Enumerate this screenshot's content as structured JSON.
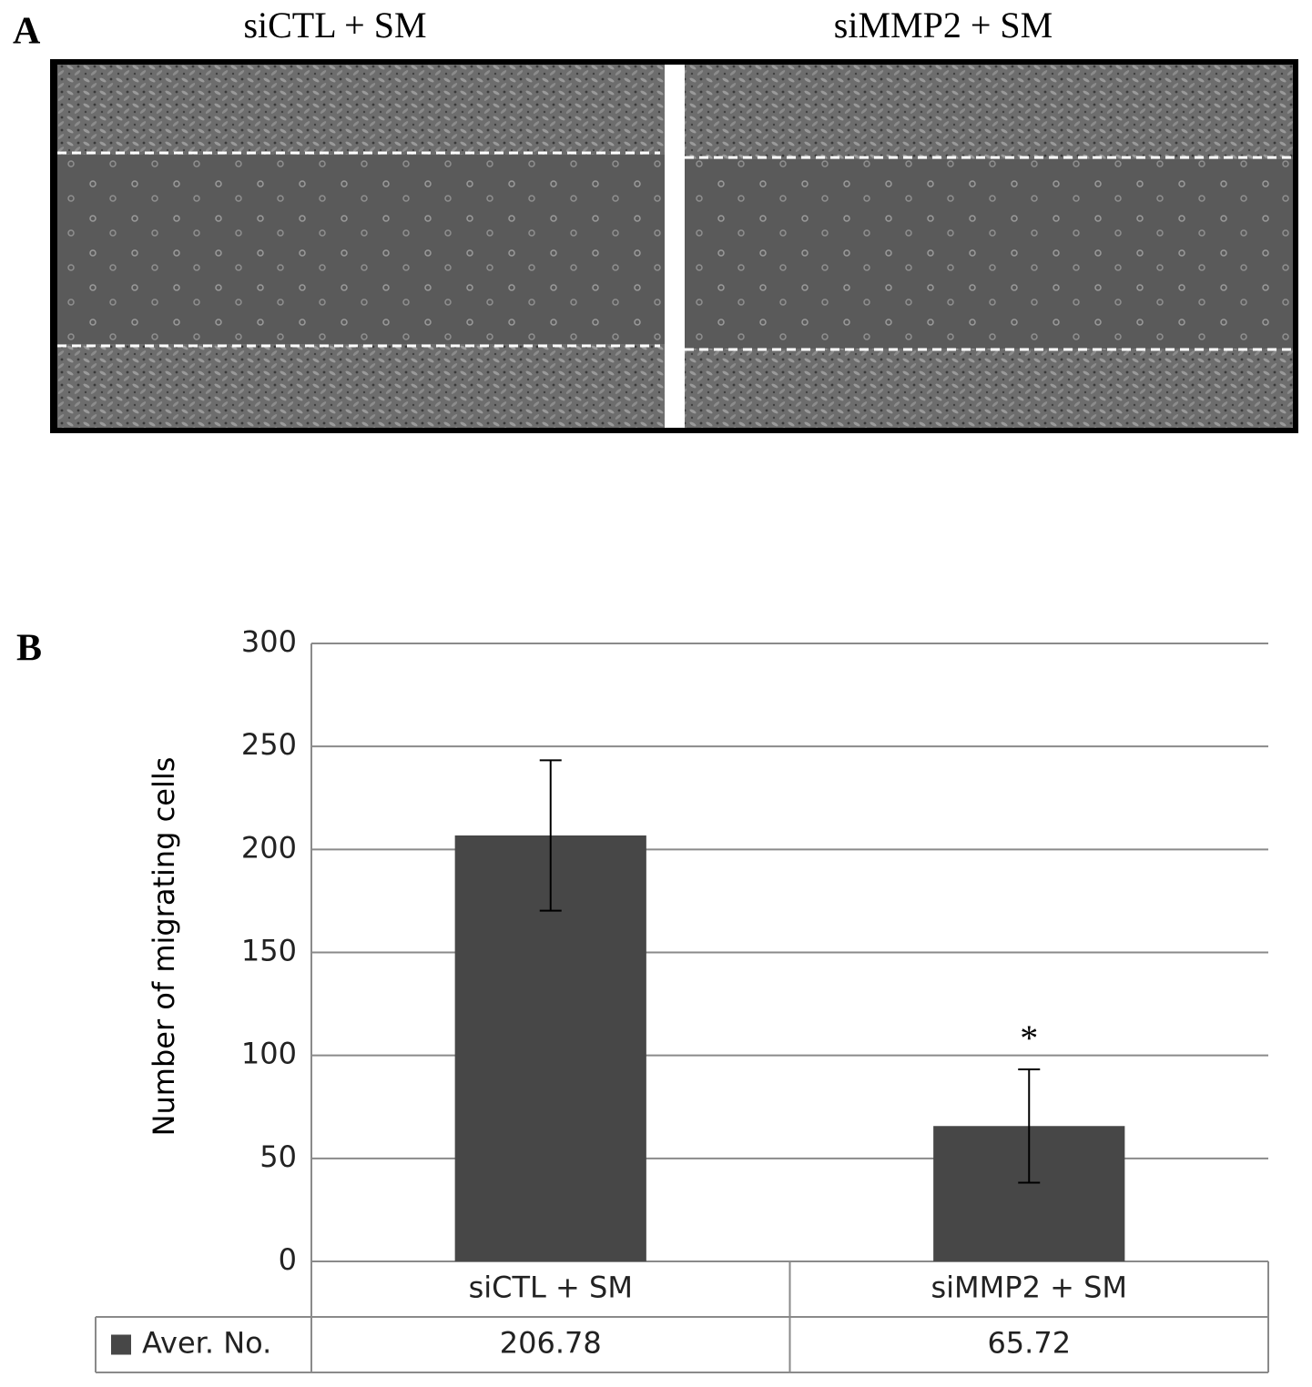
{
  "panel_a": {
    "label": "A",
    "images": [
      {
        "title": "siCTL + SM"
      },
      {
        "title": "siMMP2 + SM"
      }
    ]
  },
  "chart_data": {
    "type": "bar",
    "panel_label": "B",
    "y_label": "Number of migrating cells",
    "categories": [
      "siCTL + SM",
      "siMMP2 + SM"
    ],
    "series": [
      {
        "name": "Aver. No.",
        "color": "#474747",
        "values": [
          206.78,
          65.72
        ],
        "errors": [
          36.5,
          27.5
        ]
      }
    ],
    "annotations": [
      {
        "category": 1,
        "text": "*"
      }
    ],
    "ylim": [
      0,
      300
    ],
    "yticks": [
      0,
      50,
      100,
      150,
      200,
      250,
      300
    ],
    "grid": true
  }
}
